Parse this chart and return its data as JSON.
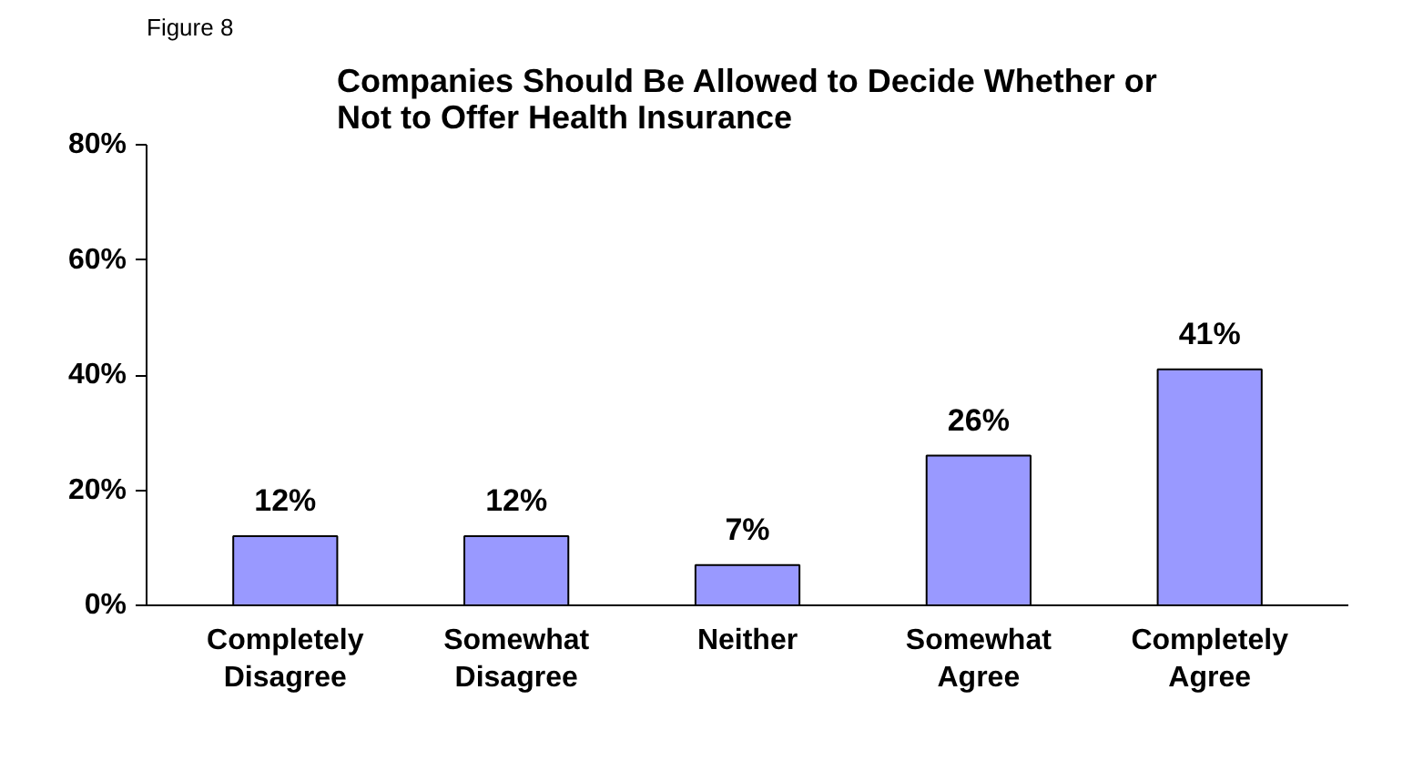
{
  "chart_data": {
    "type": "bar",
    "title": "Companies Should Be Allowed to Decide Whether or\nNot to Offer Health Insurance",
    "annotations": [
      "Figure 8"
    ],
    "categories": [
      "Completely\nDisagree",
      "Somewhat\nDisagree",
      "Neither",
      "Somewhat\nAgree",
      "Completely\nAgree"
    ],
    "values": [
      12,
      12,
      7,
      26,
      41
    ],
    "color": "#9999ff",
    "value_labels": [
      "12%",
      "12%",
      "7%",
      "26%",
      "41%"
    ],
    "ylim": [
      0,
      80
    ],
    "yticks": [
      {
        "value": 0,
        "label": "0%"
      },
      {
        "value": 20,
        "label": "20%"
      },
      {
        "value": 40,
        "label": "40%"
      },
      {
        "value": 60,
        "label": "60%"
      },
      {
        "value": 80,
        "label": "80%"
      }
    ],
    "grid": false
  }
}
